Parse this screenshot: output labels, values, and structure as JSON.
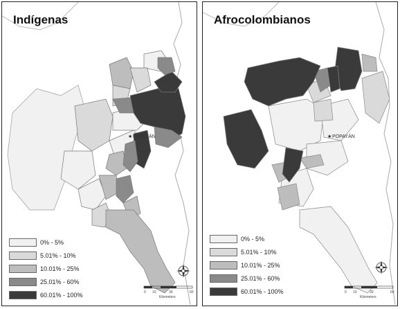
{
  "maps": [
    {
      "title": "Indígenas"
    },
    {
      "title": "Afrocolombianos"
    }
  ],
  "city_label": "POPAYÁN",
  "legend": [
    {
      "label": "0% - 5%",
      "color": "#f1f1f1"
    },
    {
      "label": "5.01% - 10%",
      "color": "#dadada"
    },
    {
      "label": "10.01% - 25%",
      "color": "#bdbdbd"
    },
    {
      "label": "25.01% - 60%",
      "color": "#8a8a8a"
    },
    {
      "label": "60.01% - 100%",
      "color": "#3a3a3a"
    }
  ],
  "scale_ticks": [
    "0",
    "10",
    "30",
    "60"
  ],
  "scale_unit": "Kilometers"
}
